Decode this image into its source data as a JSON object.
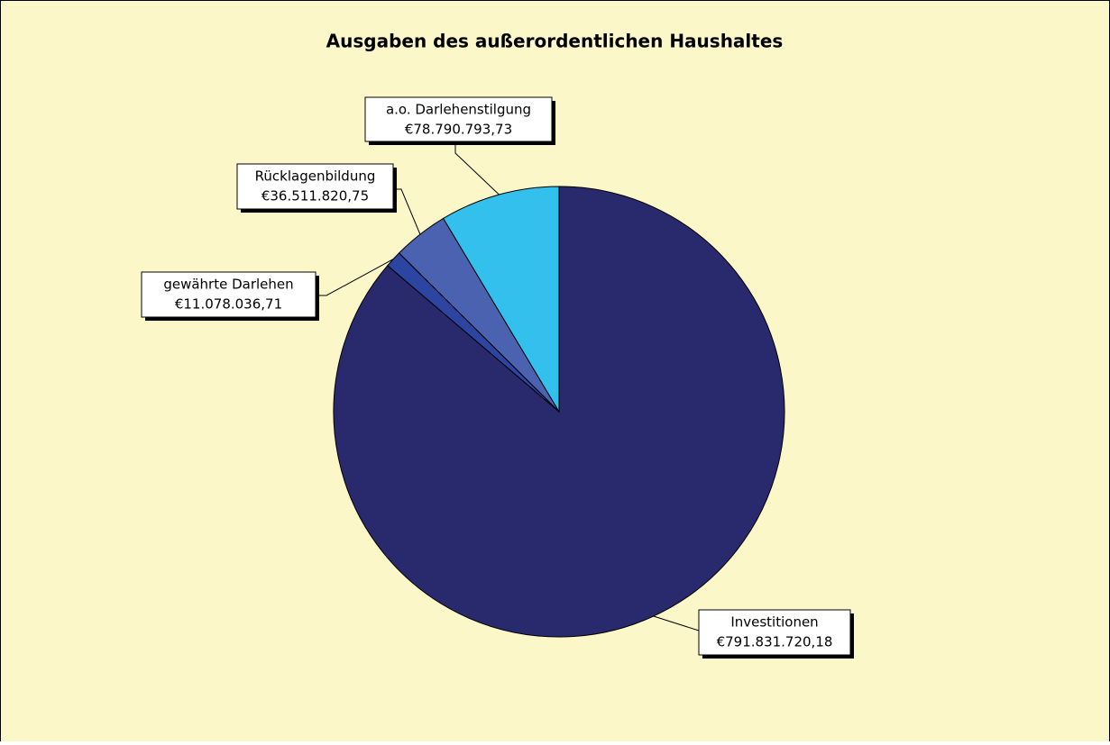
{
  "chart_data": {
    "type": "pie",
    "title": "Ausgaben des außerordentlichen Haushaltes",
    "categories": [
      "Investitionen",
      "gewährte Darlehen",
      "Rücklagenbildung",
      "a.o. Darlehenstilgung"
    ],
    "values": [
      791831720.18,
      11078036.71,
      36511820.75,
      78790793.73
    ],
    "value_labels": [
      "€791.831.720,18",
      "€11.078.036,71",
      "€36.511.820,75",
      "€78.790.793,73"
    ],
    "colors": [
      "#29296e",
      "#2b45a0",
      "#4a62b0",
      "#33c0ec"
    ]
  }
}
